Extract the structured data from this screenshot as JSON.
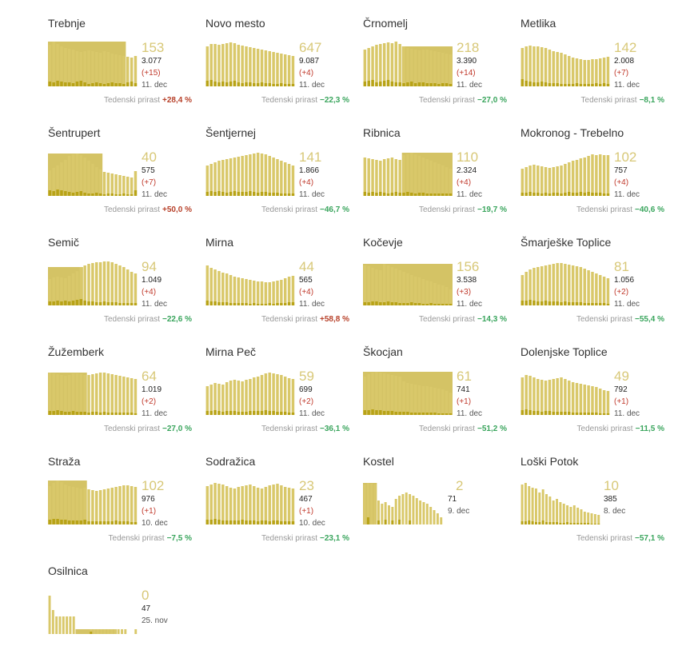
{
  "labels": {
    "growth": "Tedenski prirast"
  },
  "colors": {
    "bar": "#d9c86a",
    "bar_new": "#b8a317",
    "shade": "#cdb84a",
    "up": "#b7412a",
    "down": "#3aa55d",
    "number": "#d8c878"
  },
  "chart_data": [
    {
      "type": "bar",
      "title": "Trebnje",
      "active": "153",
      "total": "3.077",
      "new": "(+15)",
      "date": "11. dec",
      "growth": "+28,4 %",
      "dir": "up",
      "shade": [
        0,
        20
      ],
      "values": [
        52,
        56,
        53,
        50,
        48,
        47,
        46,
        44,
        43,
        44,
        45,
        44,
        43,
        42,
        44,
        43,
        41,
        40,
        39,
        38,
        37,
        36,
        38
      ],
      "new_values": [
        6,
        5,
        7,
        6,
        5,
        5,
        4,
        6,
        7,
        5,
        3,
        4,
        5,
        4,
        3,
        4,
        5,
        4,
        4,
        3,
        5,
        6,
        4
      ]
    },
    {
      "type": "bar",
      "title": "Novo mesto",
      "active": "647",
      "total": "9.087",
      "new": "(+4)",
      "date": "11. dec",
      "growth": "−22,3 %",
      "dir": "down",
      "shade": null,
      "values": [
        50,
        53,
        53,
        52,
        53,
        54,
        55,
        54,
        52,
        51,
        50,
        49,
        48,
        47,
        46,
        45,
        44,
        43,
        42,
        41,
        40,
        39,
        38
      ],
      "new_values": [
        7,
        8,
        6,
        5,
        6,
        5,
        6,
        7,
        5,
        4,
        5,
        5,
        4,
        4,
        5,
        4,
        4,
        3,
        3,
        4,
        3,
        3,
        3
      ]
    },
    {
      "type": "bar",
      "title": "Črnomelj",
      "active": "218",
      "total": "3.390",
      "new": "(+14)",
      "date": "11. dec",
      "growth": "−27,0 %",
      "dir": "down",
      "shade": [
        10,
        23
      ],
      "values": [
        46,
        48,
        50,
        52,
        53,
        54,
        55,
        54,
        56,
        53,
        50,
        48,
        47,
        46,
        45,
        46,
        46,
        45,
        44,
        43,
        42,
        41,
        40
      ],
      "new_values": [
        6,
        7,
        8,
        5,
        6,
        7,
        8,
        6,
        5,
        5,
        4,
        5,
        6,
        4,
        5,
        5,
        4,
        4,
        4,
        3,
        4,
        4,
        3
      ]
    },
    {
      "type": "bar",
      "title": "Metlika",
      "active": "142",
      "total": "2.008",
      "new": "(+7)",
      "date": "11. dec",
      "growth": "−8,1 %",
      "dir": "down",
      "shade": null,
      "values": [
        48,
        50,
        51,
        50,
        50,
        49,
        48,
        46,
        44,
        43,
        42,
        40,
        38,
        36,
        35,
        34,
        33,
        33,
        34,
        34,
        35,
        36,
        37
      ],
      "new_values": [
        9,
        7,
        6,
        5,
        5,
        6,
        5,
        4,
        4,
        4,
        3,
        3,
        3,
        3,
        4,
        3,
        3,
        3,
        3,
        4,
        3,
        4,
        3
      ]
    },
    {
      "type": "bar",
      "title": "Šentrupert",
      "active": "40",
      "total": "575",
      "new": "(+7)",
      "date": "11. dec",
      "growth": "+50,0 %",
      "dir": "up",
      "shade": [
        0,
        14
      ],
      "values": [
        32,
        35,
        38,
        42,
        45,
        50,
        52,
        53,
        51,
        48,
        44,
        40,
        36,
        33,
        30,
        29,
        28,
        27,
        26,
        25,
        24,
        23,
        31
      ],
      "new_values": [
        7,
        6,
        8,
        7,
        6,
        5,
        4,
        5,
        6,
        4,
        3,
        3,
        4,
        3,
        2,
        3,
        3,
        2,
        2,
        3,
        2,
        2,
        7
      ]
    },
    {
      "type": "bar",
      "title": "Šentjernej",
      "active": "141",
      "total": "1.866",
      "new": "(+4)",
      "date": "11. dec",
      "growth": "−46,7 %",
      "dir": "down",
      "shade": null,
      "values": [
        38,
        40,
        42,
        44,
        45,
        46,
        47,
        48,
        49,
        50,
        51,
        52,
        53,
        54,
        53,
        52,
        50,
        48,
        46,
        44,
        42,
        40,
        38
      ],
      "new_values": [
        5,
        6,
        5,
        6,
        5,
        4,
        5,
        6,
        5,
        5,
        5,
        6,
        5,
        4,
        5,
        5,
        4,
        4,
        4,
        3,
        3,
        3,
        3
      ]
    },
    {
      "type": "bar",
      "title": "Ribnica",
      "active": "110",
      "total": "2.324",
      "new": "(+4)",
      "date": "11. dec",
      "growth": "−19,7 %",
      "dir": "down",
      "shade": [
        10,
        23
      ],
      "values": [
        48,
        47,
        46,
        45,
        44,
        46,
        47,
        48,
        46,
        45,
        51,
        52,
        54,
        52,
        50,
        48,
        46,
        44,
        42,
        40,
        38,
        36,
        34
      ],
      "new_values": [
        5,
        4,
        5,
        4,
        5,
        4,
        3,
        4,
        5,
        4,
        4,
        5,
        4,
        3,
        4,
        4,
        3,
        3,
        3,
        3,
        3,
        3,
        3
      ]
    },
    {
      "type": "bar",
      "title": "Mokronog - Trebelno",
      "active": "102",
      "total": "757",
      "new": "(+4)",
      "date": "11. dec",
      "growth": "−40,6 %",
      "dir": "down",
      "shade": null,
      "values": [
        34,
        36,
        38,
        39,
        38,
        37,
        36,
        35,
        36,
        37,
        38,
        40,
        42,
        44,
        45,
        47,
        48,
        50,
        52,
        51,
        52,
        51,
        51
      ],
      "new_values": [
        4,
        4,
        5,
        4,
        4,
        3,
        4,
        3,
        4,
        4,
        3,
        4,
        5,
        4,
        4,
        5,
        4,
        5,
        4,
        4,
        4,
        3,
        3
      ]
    },
    {
      "type": "bar",
      "title": "Semič",
      "active": "94",
      "total": "1.049",
      "new": "(+4)",
      "date": "11. dec",
      "growth": "−22,6 %",
      "dir": "down",
      "shade": [
        0,
        9
      ],
      "values": [
        33,
        35,
        36,
        35,
        34,
        37,
        40,
        43,
        48,
        50,
        52,
        53,
        54,
        54,
        55,
        55,
        54,
        52,
        50,
        48,
        45,
        42,
        40
      ],
      "new_values": [
        5,
        5,
        6,
        5,
        6,
        5,
        6,
        7,
        8,
        6,
        5,
        5,
        4,
        4,
        5,
        4,
        4,
        4,
        3,
        3,
        3,
        3,
        3
      ]
    },
    {
      "type": "bar",
      "title": "Mirna",
      "active": "44",
      "total": "565",
      "new": "(+4)",
      "date": "11. dec",
      "growth": "+58,8 %",
      "dir": "up",
      "shade": null,
      "values": [
        50,
        47,
        45,
        43,
        41,
        40,
        38,
        36,
        35,
        34,
        33,
        32,
        31,
        30,
        30,
        29,
        29,
        30,
        31,
        32,
        34,
        36,
        37
      ],
      "new_values": [
        6,
        5,
        5,
        4,
        4,
        4,
        3,
        3,
        3,
        3,
        3,
        2,
        3,
        2,
        2,
        2,
        3,
        2,
        3,
        3,
        3,
        4,
        4
      ]
    },
    {
      "type": "bar",
      "title": "Kočevje",
      "active": "156",
      "total": "3.538",
      "new": "(+3)",
      "date": "11. dec",
      "growth": "−14,3 %",
      "dir": "down",
      "shade": [
        0,
        23
      ],
      "values": [
        50,
        49,
        47,
        45,
        44,
        52,
        50,
        48,
        46,
        44,
        42,
        40,
        38,
        36,
        35,
        33,
        31,
        30,
        28,
        26,
        25,
        23,
        20
      ],
      "new_values": [
        4,
        4,
        5,
        5,
        4,
        4,
        5,
        4,
        4,
        3,
        3,
        3,
        4,
        3,
        3,
        2,
        2,
        3,
        2,
        2,
        2,
        2,
        2
      ]
    },
    {
      "type": "bar",
      "title": "Šmarješke Toplice",
      "active": "81",
      "total": "1.056",
      "new": "(+2)",
      "date": "11. dec",
      "growth": "−55,4 %",
      "dir": "down",
      "shade": null,
      "values": [
        38,
        42,
        45,
        47,
        48,
        49,
        50,
        51,
        52,
        53,
        53,
        52,
        51,
        50,
        49,
        48,
        46,
        44,
        42,
        40,
        38,
        36,
        34
      ],
      "new_values": [
        6,
        6,
        7,
        6,
        5,
        5,
        6,
        5,
        5,
        5,
        4,
        5,
        4,
        4,
        4,
        4,
        3,
        3,
        3,
        3,
        3,
        3,
        2
      ]
    },
    {
      "type": "bar",
      "title": "Žužemberk",
      "active": "64",
      "total": "1.019",
      "new": "(+2)",
      "date": "11. dec",
      "growth": "−27,0 %",
      "dir": "down",
      "shade": [
        0,
        10
      ],
      "values": [
        53,
        52,
        51,
        50,
        49,
        50,
        52,
        52,
        51,
        50,
        50,
        51,
        52,
        53,
        53,
        52,
        51,
        50,
        49,
        48,
        47,
        46,
        45
      ],
      "new_values": [
        5,
        5,
        6,
        5,
        4,
        4,
        5,
        4,
        4,
        4,
        3,
        4,
        4,
        3,
        4,
        3,
        3,
        3,
        3,
        3,
        3,
        3,
        2
      ]
    },
    {
      "type": "bar",
      "title": "Mirna Peč",
      "active": "59",
      "total": "699",
      "new": "(+2)",
      "date": "11. dec",
      "growth": "−36,1 %",
      "dir": "down",
      "shade": null,
      "values": [
        36,
        38,
        40,
        39,
        38,
        41,
        43,
        44,
        43,
        42,
        44,
        45,
        47,
        48,
        50,
        52,
        53,
        52,
        51,
        50,
        48,
        46,
        45
      ],
      "new_values": [
        5,
        5,
        6,
        5,
        4,
        5,
        5,
        5,
        4,
        4,
        4,
        5,
        5,
        5,
        5,
        6,
        5,
        5,
        4,
        4,
        4,
        3,
        3
      ]
    },
    {
      "type": "bar",
      "title": "Škocjan",
      "active": "61",
      "total": "741",
      "new": "(+1)",
      "date": "11. dec",
      "growth": "−51,2 %",
      "dir": "down",
      "shade": [
        0,
        23
      ],
      "values": [
        48,
        51,
        53,
        54,
        53,
        52,
        51,
        50,
        49,
        48,
        42,
        40,
        39,
        38,
        37,
        36,
        36,
        35,
        34,
        33,
        32,
        30,
        28
      ],
      "new_values": [
        6,
        6,
        7,
        6,
        6,
        5,
        5,
        5,
        4,
        4,
        4,
        4,
        3,
        3,
        3,
        3,
        3,
        3,
        3,
        2,
        2,
        2,
        2
      ]
    },
    {
      "type": "bar",
      "title": "Dolenjske Toplice",
      "active": "49",
      "total": "792",
      "new": "(+1)",
      "date": "11. dec",
      "growth": "−11,5 %",
      "dir": "down",
      "shade": null,
      "values": [
        47,
        50,
        49,
        47,
        45,
        44,
        43,
        44,
        45,
        46,
        47,
        45,
        43,
        41,
        40,
        39,
        38,
        37,
        36,
        35,
        33,
        31,
        30
      ],
      "new_values": [
        6,
        7,
        6,
        5,
        5,
        4,
        5,
        5,
        4,
        4,
        4,
        4,
        4,
        3,
        3,
        3,
        3,
        3,
        3,
        3,
        2,
        2,
        2
      ]
    },
    {
      "type": "bar",
      "title": "Straža",
      "active": "102",
      "total": "976",
      "new": "(+1)",
      "date": "10. dec",
      "growth": "−7,5 %",
      "dir": "down",
      "shade": [
        0,
        10
      ],
      "values": [
        48,
        52,
        55,
        53,
        50,
        48,
        47,
        46,
        45,
        46,
        44,
        43,
        42,
        43,
        44,
        45,
        46,
        47,
        48,
        49,
        49,
        48,
        47
      ],
      "new_values": [
        6,
        7,
        7,
        6,
        6,
        5,
        5,
        5,
        5,
        6,
        4,
        4,
        4,
        4,
        4,
        4,
        4,
        5,
        4,
        4,
        4,
        3,
        3
      ]
    },
    {
      "type": "bar",
      "title": "Sodražica",
      "active": "23",
      "total": "467",
      "new": "(+1)",
      "date": "10. dec",
      "growth": "−23,1 %",
      "dir": "down",
      "shade": null,
      "values": [
        48,
        50,
        52,
        51,
        50,
        48,
        46,
        45,
        47,
        48,
        49,
        50,
        48,
        46,
        45,
        47,
        49,
        50,
        51,
        49,
        47,
        46,
        45
      ],
      "new_values": [
        6,
        6,
        7,
        6,
        5,
        5,
        5,
        5,
        5,
        6,
        5,
        5,
        5,
        4,
        5,
        5,
        4,
        5,
        5,
        4,
        4,
        4,
        4
      ]
    },
    {
      "type": "bar",
      "title": "Kostel",
      "active": "2",
      "total": "71",
      "new": "",
      "date": "9. dec",
      "growth": "",
      "dir": "none",
      "shade": [
        0,
        4
      ],
      "values": [
        50,
        52,
        51,
        50,
        30,
        26,
        28,
        24,
        22,
        32,
        36,
        38,
        40,
        38,
        36,
        33,
        30,
        28,
        26,
        22,
        18,
        14,
        9
      ],
      "new_values": [
        0,
        9,
        0,
        0,
        5,
        0,
        6,
        0,
        5,
        0,
        6,
        0,
        0,
        5,
        0,
        0,
        0,
        0,
        0,
        0,
        0,
        0,
        0
      ]
    },
    {
      "type": "bar",
      "title": "Loški Potok",
      "active": "10",
      "total": "385",
      "new": "",
      "date": "8. dec",
      "growth": "−57,1 %",
      "dir": "down",
      "shade": null,
      "values": [
        50,
        52,
        48,
        46,
        45,
        40,
        44,
        38,
        35,
        30,
        32,
        28,
        26,
        24,
        22,
        24,
        21,
        19,
        16,
        15,
        14,
        13,
        12
      ],
      "new_values": [
        4,
        4,
        5,
        4,
        3,
        3,
        5,
        3,
        3,
        3,
        3,
        2,
        2,
        3,
        2,
        2,
        2,
        2,
        2,
        2,
        1,
        1,
        1
      ]
    },
    {
      "type": "bar",
      "title": "Osilnica",
      "active": "0",
      "total": "47",
      "new": "",
      "date": "25. nov",
      "growth": "",
      "dir": "none",
      "shade": [
        8,
        20
      ],
      "values": [
        48,
        30,
        22,
        22,
        22,
        22,
        22,
        22,
        0,
        0,
        0,
        0,
        6,
        6,
        6,
        6,
        6,
        6,
        6,
        6,
        6,
        6,
        6,
        0,
        0,
        6
      ],
      "new_values": [
        0,
        0,
        0,
        0,
        0,
        0,
        0,
        0,
        0,
        0,
        0,
        0,
        3,
        0,
        0,
        0,
        0,
        0,
        0,
        0,
        0,
        0,
        0,
        0,
        0,
        0
      ]
    }
  ]
}
